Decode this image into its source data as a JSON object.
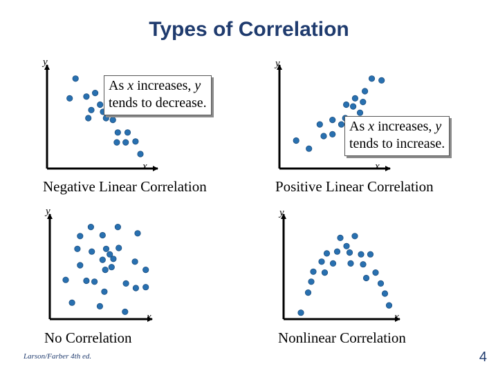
{
  "title": "Types of Correlation",
  "footer": "Larson/Farber 4th ed.",
  "page_number": "4",
  "colors": {
    "title": "#1f3b6e",
    "point": "#2870b0",
    "point_edge": "#1d4f80",
    "axis": "#000000"
  },
  "callouts": {
    "negative": {
      "prefix": "As ",
      "x": "x",
      "middle": " increases, ",
      "y": "y",
      "line2": "tends to decrease."
    },
    "positive": {
      "prefix": "As ",
      "x": "x",
      "middle": " increases, ",
      "y": "y",
      "line2": "tends to increase."
    }
  },
  "chart_data": [
    {
      "type": "scatter",
      "title": "Negative Linear Correlation",
      "xlabel": "x",
      "ylabel": "y",
      "xlim": [
        0,
        10
      ],
      "ylim": [
        0,
        10
      ],
      "points": [
        [
          2.2,
          9.4
        ],
        [
          4.2,
          7.8
        ],
        [
          5.5,
          7.8
        ],
        [
          1.6,
          7.2
        ],
        [
          3.3,
          7.4
        ],
        [
          4.7,
          6.5
        ],
        [
          6.0,
          6.4
        ],
        [
          3.8,
          5.9
        ],
        [
          5.0,
          5.7
        ],
        [
          3.5,
          5.0
        ],
        [
          5.3,
          5.0
        ],
        [
          6.0,
          4.8
        ],
        [
          6.5,
          3.4
        ],
        [
          7.5,
          3.4
        ],
        [
          6.4,
          2.3
        ],
        [
          7.3,
          2.3
        ],
        [
          8.3,
          2.4
        ],
        [
          8.8,
          1.0
        ]
      ]
    },
    {
      "type": "scatter",
      "title": "Positive Linear Correlation",
      "xlabel": "x",
      "ylabel": "y",
      "xlim": [
        0,
        10
      ],
      "ylim": [
        0,
        10
      ],
      "points": [
        [
          1.0,
          2.5
        ],
        [
          2.3,
          1.6
        ],
        [
          3.4,
          4.3
        ],
        [
          3.8,
          3.0
        ],
        [
          4.7,
          4.8
        ],
        [
          4.7,
          3.2
        ],
        [
          5.6,
          4.3
        ],
        [
          6.1,
          6.5
        ],
        [
          6.0,
          5.0
        ],
        [
          6.8,
          6.3
        ],
        [
          7.0,
          7.2
        ],
        [
          7.5,
          5.6
        ],
        [
          8.0,
          8.0
        ],
        [
          7.8,
          6.8
        ],
        [
          8.7,
          9.4
        ],
        [
          9.7,
          9.2
        ]
      ]
    },
    {
      "type": "scatter",
      "title": "No Correlation",
      "xlabel": "x",
      "ylabel": "y",
      "xlim": [
        0,
        10
      ],
      "ylim": [
        0,
        10
      ],
      "points": [
        [
          3.8,
          9.5
        ],
        [
          6.8,
          9.5
        ],
        [
          2.6,
          8.5
        ],
        [
          5.1,
          8.6
        ],
        [
          9.0,
          8.8
        ],
        [
          2.3,
          7.1
        ],
        [
          5.5,
          7.1
        ],
        [
          6.9,
          7.2
        ],
        [
          3.9,
          6.8
        ],
        [
          5.9,
          6.5
        ],
        [
          5.1,
          5.9
        ],
        [
          6.3,
          6.0
        ],
        [
          8.7,
          5.7
        ],
        [
          2.6,
          5.3
        ],
        [
          6.1,
          5.1
        ],
        [
          9.9,
          4.8
        ],
        [
          5.4,
          4.8
        ],
        [
          1.0,
          3.7
        ],
        [
          3.3,
          3.6
        ],
        [
          4.2,
          3.5
        ],
        [
          7.7,
          3.3
        ],
        [
          8.8,
          2.8
        ],
        [
          9.9,
          2.9
        ],
        [
          5.3,
          2.4
        ],
        [
          1.7,
          1.2
        ],
        [
          4.8,
          0.8
        ],
        [
          7.6,
          0.2
        ]
      ]
    },
    {
      "type": "scatter",
      "title": "Nonlinear Correlation",
      "xlabel": "x",
      "ylabel": "y",
      "xlim": [
        0,
        10
      ],
      "ylim": [
        0,
        10
      ],
      "points": [
        [
          4.8,
          8.3
        ],
        [
          6.2,
          8.5
        ],
        [
          5.4,
          7.4
        ],
        [
          3.5,
          6.6
        ],
        [
          4.5,
          6.8
        ],
        [
          5.7,
          6.7
        ],
        [
          6.8,
          6.5
        ],
        [
          7.7,
          6.5
        ],
        [
          3.0,
          5.7
        ],
        [
          4.1,
          5.5
        ],
        [
          5.8,
          5.5
        ],
        [
          7.0,
          5.4
        ],
        [
          2.2,
          4.6
        ],
        [
          3.3,
          4.5
        ],
        [
          8.2,
          4.5
        ],
        [
          7.3,
          3.9
        ],
        [
          2.0,
          3.5
        ],
        [
          8.7,
          3.3
        ],
        [
          1.7,
          2.3
        ],
        [
          9.1,
          2.2
        ],
        [
          9.5,
          0.9
        ],
        [
          1.0,
          0.1
        ]
      ]
    }
  ]
}
